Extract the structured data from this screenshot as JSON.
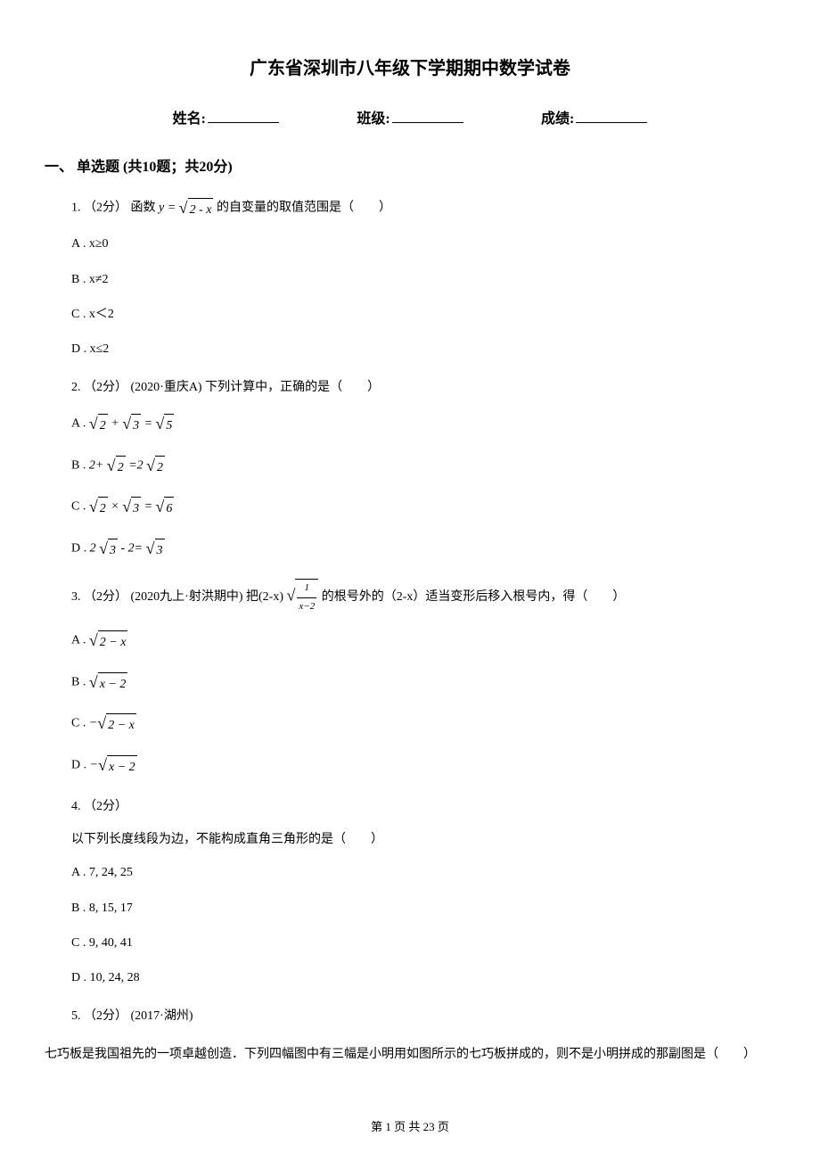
{
  "title": "广东省深圳市八年级下学期期中数学试卷",
  "header": {
    "name_label": "姓名:",
    "class_label": "班级:",
    "score_label": "成绩:"
  },
  "section": {
    "number": "一、",
    "title": "单选题 (共10题；共20分)"
  },
  "questions": [
    {
      "num": "1.",
      "points": "（2分）",
      "stem_prefix": "函数",
      "stem_math": "y = √(2 - x)",
      "stem_suffix": "的自变量的取值范围是（　　）",
      "options": [
        {
          "label": "A .",
          "text": "x≥0"
        },
        {
          "label": "B .",
          "text": "x≠2"
        },
        {
          "label": "C .",
          "text": "x＜2"
        },
        {
          "label": "D .",
          "text": "x≤2"
        }
      ]
    },
    {
      "num": "2.",
      "points": "（2分）",
      "source": "(2020·重庆A)",
      "stem": "下列计算中，正确的是（　　）",
      "options": [
        {
          "label": "A .",
          "math": "√2 + √3 = √5"
        },
        {
          "label": "B .",
          "math": "2+ √2 =2 √2"
        },
        {
          "label": "C .",
          "math": "√2 × √3 = √6"
        },
        {
          "label": "D .",
          "math": "2 √3 - 2= √3"
        }
      ]
    },
    {
      "num": "3.",
      "points": "（2分）",
      "source": "(2020九上·射洪期中)",
      "stem_prefix": "把(2-x)",
      "stem_math": "√(1/(x-2))",
      "stem_suffix": " 的根号外的（2-x）适当变形后移入根号内，得（　　）",
      "options": [
        {
          "label": "A .",
          "math": "√(2 − x)"
        },
        {
          "label": "B .",
          "math": "√(x − 2)"
        },
        {
          "label": "C .",
          "math": "−√(2 − x)"
        },
        {
          "label": "D .",
          "math": "−√(x − 2)"
        }
      ]
    },
    {
      "num": "4.",
      "points": "（2分）",
      "stem": "以下列长度线段为边，不能构成直角三角形的是（　　）",
      "options": [
        {
          "label": "A .",
          "text": "7, 24, 25"
        },
        {
          "label": "B .",
          "text": "8, 15, 17"
        },
        {
          "label": "C .",
          "text": "9, 40, 41"
        },
        {
          "label": "D .",
          "text": "10, 24, 28"
        }
      ]
    },
    {
      "num": "5.",
      "points": "（2分）",
      "source": "(2017·湖州)",
      "stem_full": "七巧板是我国祖先的一项卓越创造．下列四幅图中有三幅是小明用如图所示的七巧板拼成的，则不是小明拼成的那副图是（　　）"
    }
  ],
  "footer": {
    "page_label": "第 1 页 共 23 页"
  }
}
